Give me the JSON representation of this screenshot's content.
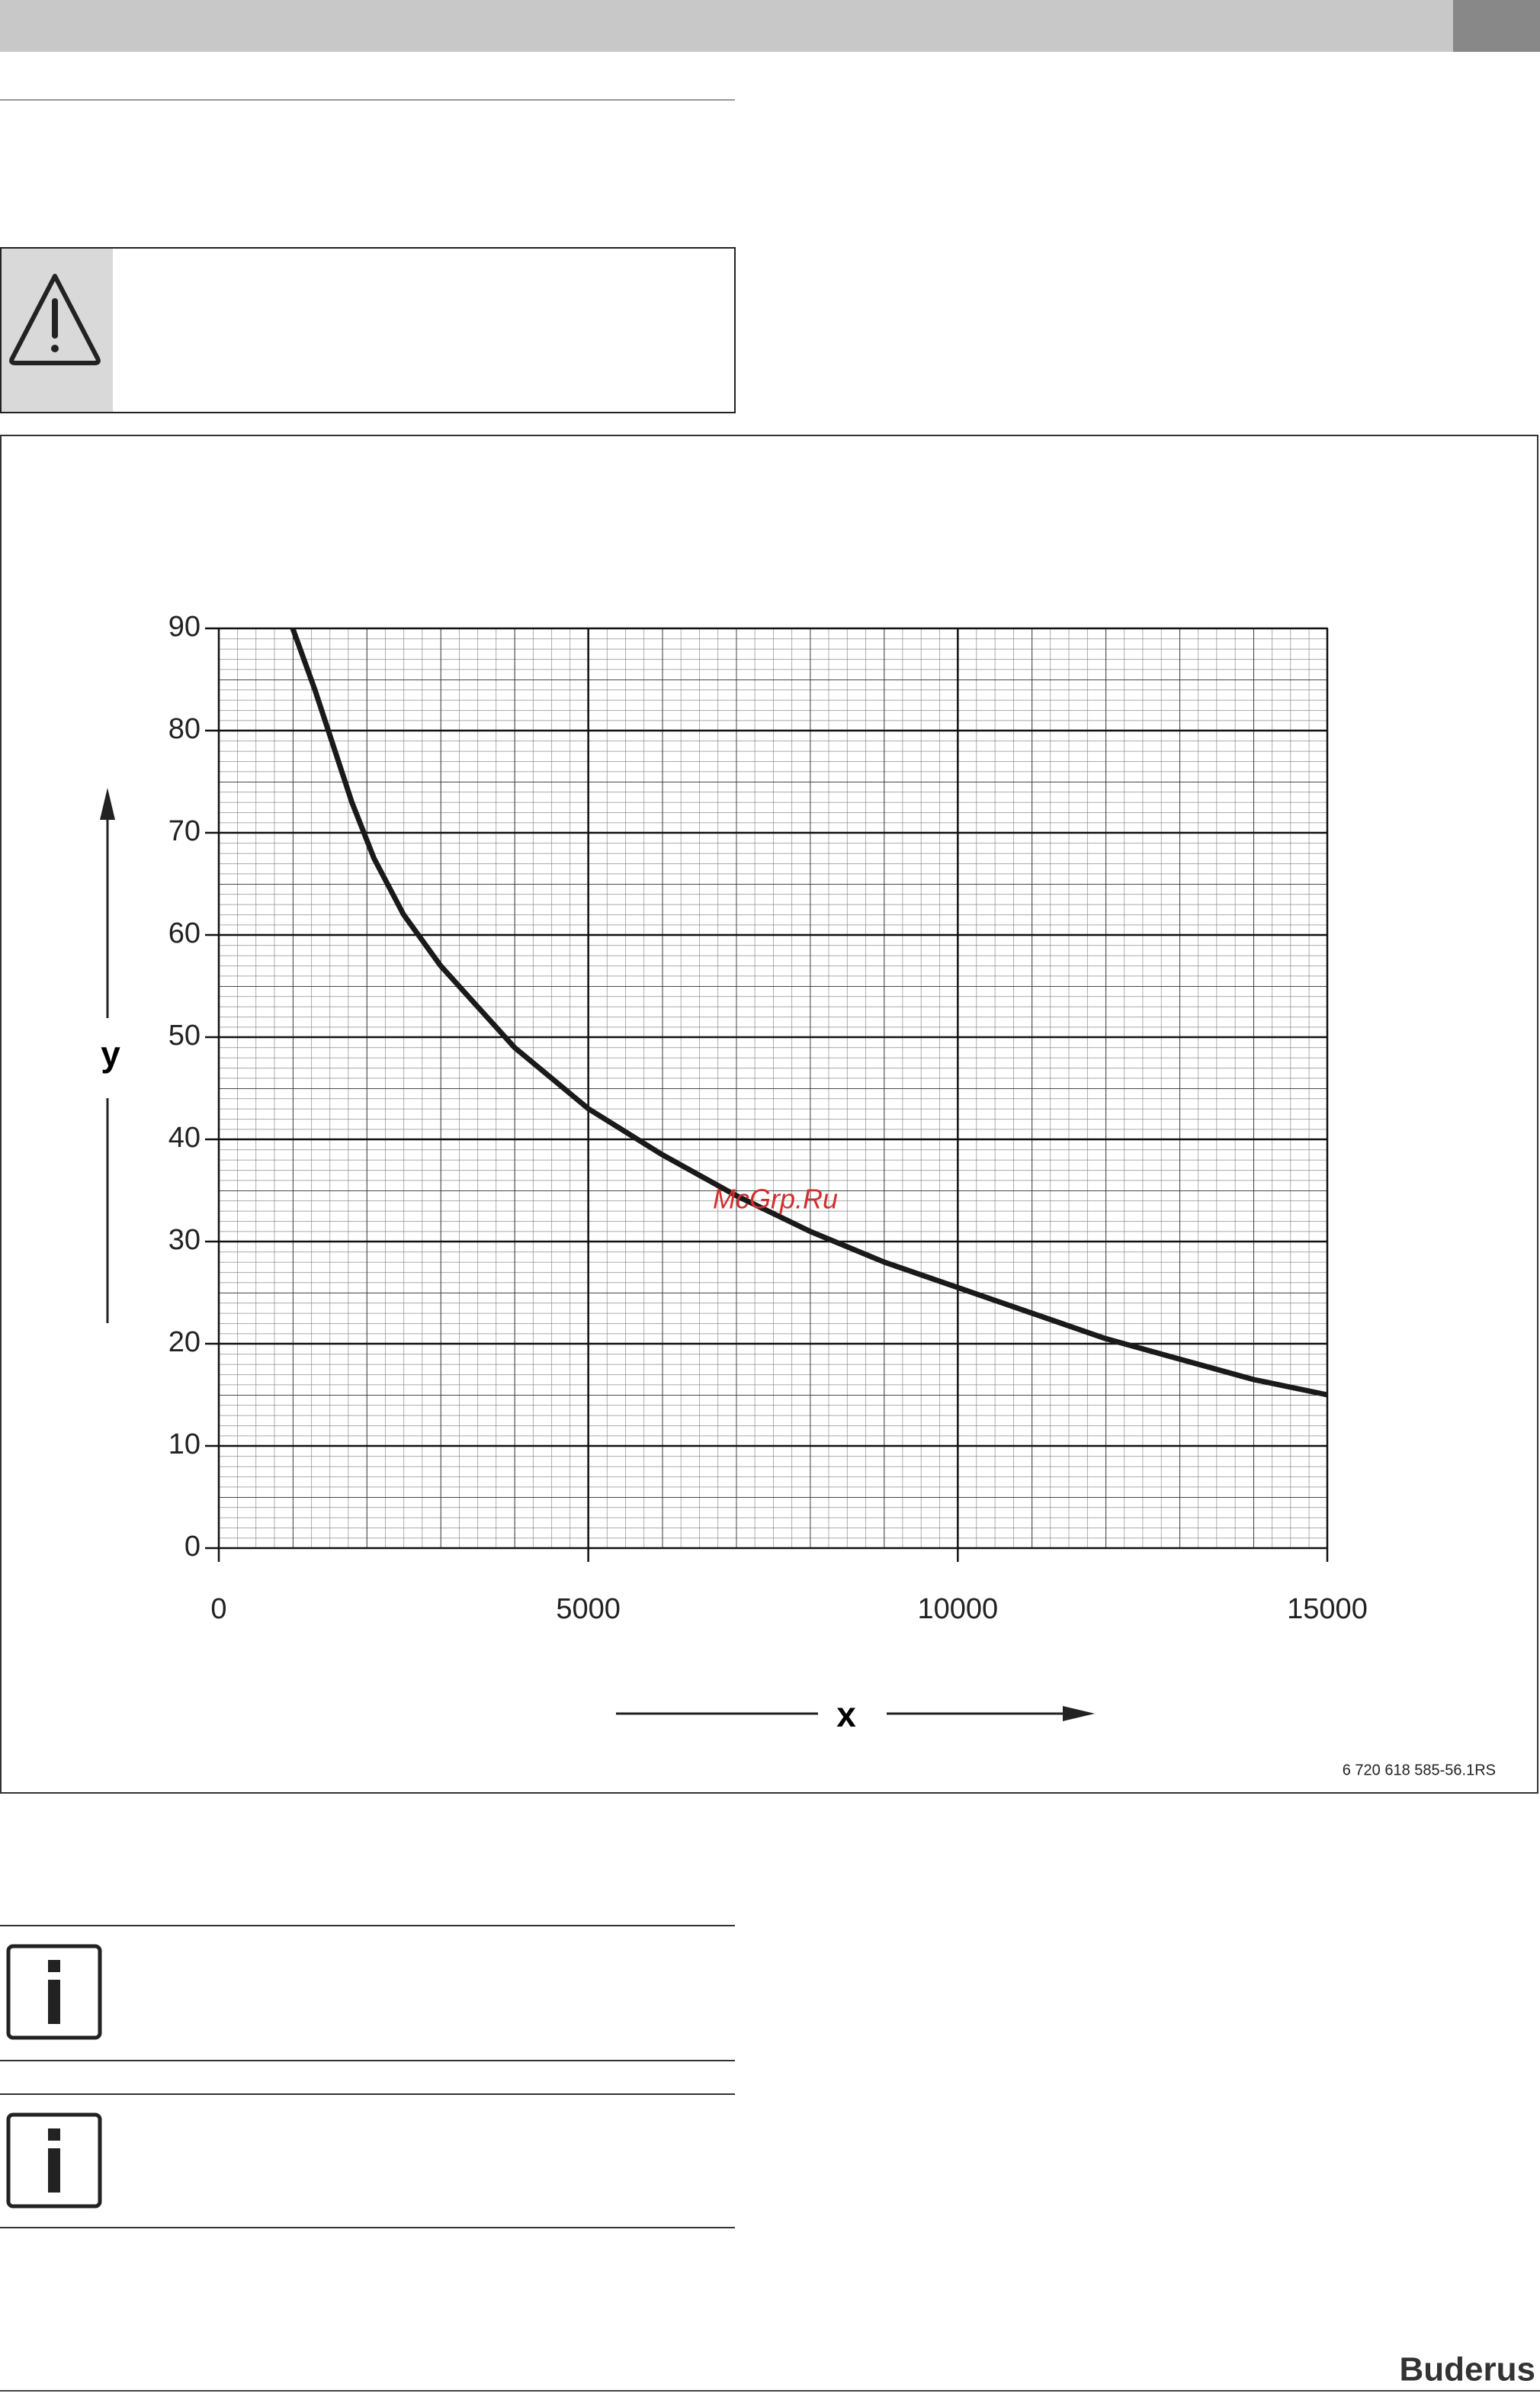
{
  "chart_data": {
    "type": "line",
    "x_label": "x",
    "y_label": "y",
    "x": [
      1000,
      1300,
      1800,
      2100,
      2500,
      3000,
      3500,
      4000,
      4500,
      5000,
      6000,
      7000,
      8000,
      9000,
      10000,
      11000,
      12000,
      13000,
      14000,
      15000
    ],
    "values": [
      90,
      84,
      73,
      67.5,
      62,
      57,
      53,
      49,
      46,
      43,
      38.5,
      34.5,
      31,
      28,
      25.5,
      23,
      20.5,
      18.5,
      16.5,
      15
    ],
    "color": "#1a1a1a",
    "xlim": [
      0,
      15000
    ],
    "ylim": [
      0,
      90
    ],
    "xticks": [
      0,
      5000,
      10000,
      15000
    ],
    "yticks": [
      0,
      10,
      20,
      30,
      40,
      50,
      60,
      70,
      80,
      90
    ],
    "grid": true
  },
  "watermark": "McGrp.Ru",
  "figure_code": "6 720 618 585-56.1RS",
  "footer": {
    "brand": "Buderus"
  }
}
